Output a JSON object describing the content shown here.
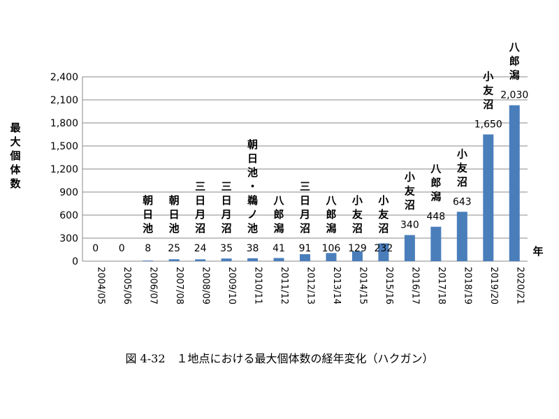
{
  "caption": "図 4-32　１地点における最大個体数の経年変化（ハクガン）",
  "chart_data": {
    "type": "bar",
    "ylabel": "最大個体数",
    "xlabel": "年",
    "ylim": [
      0,
      2400
    ],
    "yticks": [
      "0",
      "300",
      "600",
      "900",
      "1,200",
      "1,500",
      "1,800",
      "2,100",
      "2,400"
    ],
    "ytick_values": [
      0,
      300,
      600,
      900,
      1200,
      1500,
      1800,
      2100,
      2400
    ],
    "grid": true,
    "bar_color": "#4a7ebb",
    "categories": [
      "2004/05",
      "2005/06",
      "2006/07",
      "2007/08",
      "2008/09",
      "2009/10",
      "2010/11",
      "2011/12",
      "2012/13",
      "2013/14",
      "2014/15",
      "2015/16",
      "2016/17",
      "2017/18",
      "2018/19",
      "2019/20",
      "2020/21"
    ],
    "values": [
      0,
      0,
      8,
      25,
      24,
      35,
      38,
      41,
      91,
      106,
      129,
      232,
      340,
      448,
      643,
      1650,
      2030
    ],
    "value_labels": [
      "0",
      "0",
      "8",
      "25",
      "24",
      "35",
      "38",
      "41",
      "91",
      "106",
      "129",
      "232",
      "340",
      "448",
      "643",
      "1,650",
      "2,030"
    ],
    "sites": [
      "",
      "",
      "朝日池",
      "朝日池",
      "三日月沼",
      "三日月沼",
      "朝日池・鵜ノ池",
      "八郎潟",
      "三日月沼",
      "八郎潟",
      "小友沼",
      "小友沼",
      "小友沼",
      "八郎潟",
      "小友沼",
      "小友沼",
      "八郎潟"
    ]
  }
}
